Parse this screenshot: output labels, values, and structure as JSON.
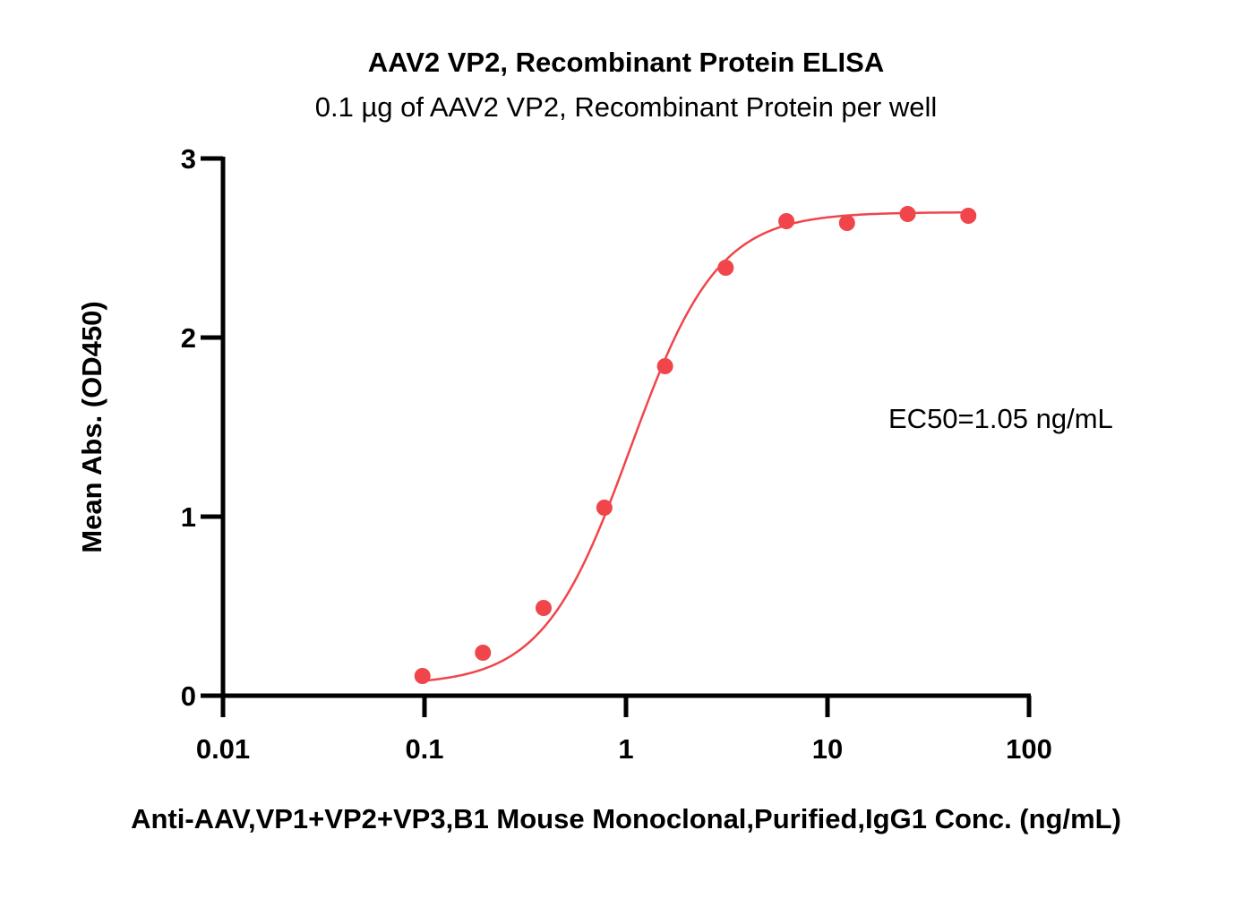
{
  "chart_data": {
    "type": "scatter",
    "title": "AAV2 VP2, Recombinant Protein ELISA",
    "subtitle": "0.1 µg of AAV2 VP2, Recombinant Protein per well",
    "xlabel": "Anti-AAV,VP1+VP2+VP3,B1 Mouse Monoclonal,Purified,IgG1 Conc. (ng/mL)",
    "ylabel": "Mean Abs. (OD450)",
    "x_scale": "log",
    "xlim": [
      0.01,
      100
    ],
    "ylim": [
      0,
      3
    ],
    "x_ticks": [
      0.01,
      0.1,
      1,
      10,
      100
    ],
    "x_tick_labels": [
      "0.01",
      "0.1",
      "1",
      "10",
      "100"
    ],
    "y_ticks": [
      0,
      1,
      2,
      3
    ],
    "y_tick_labels": [
      "0",
      "1",
      "2",
      "3"
    ],
    "grid": false,
    "annotation": "EC50=1.05 ng/mL",
    "color": "#f0454a",
    "series": [
      {
        "x": [
          0.0977,
          0.195,
          0.39,
          0.781,
          1.5625,
          3.125,
          6.25,
          12.5,
          25,
          50
        ],
        "y": [
          0.11,
          0.24,
          0.49,
          1.05,
          1.84,
          2.39,
          2.65,
          2.64,
          2.69,
          2.68
        ]
      }
    ],
    "fit_curve": {
      "model": "4PL",
      "bottom": 0.06,
      "top": 2.7,
      "ec50": 1.05,
      "hill": 2.0
    }
  }
}
